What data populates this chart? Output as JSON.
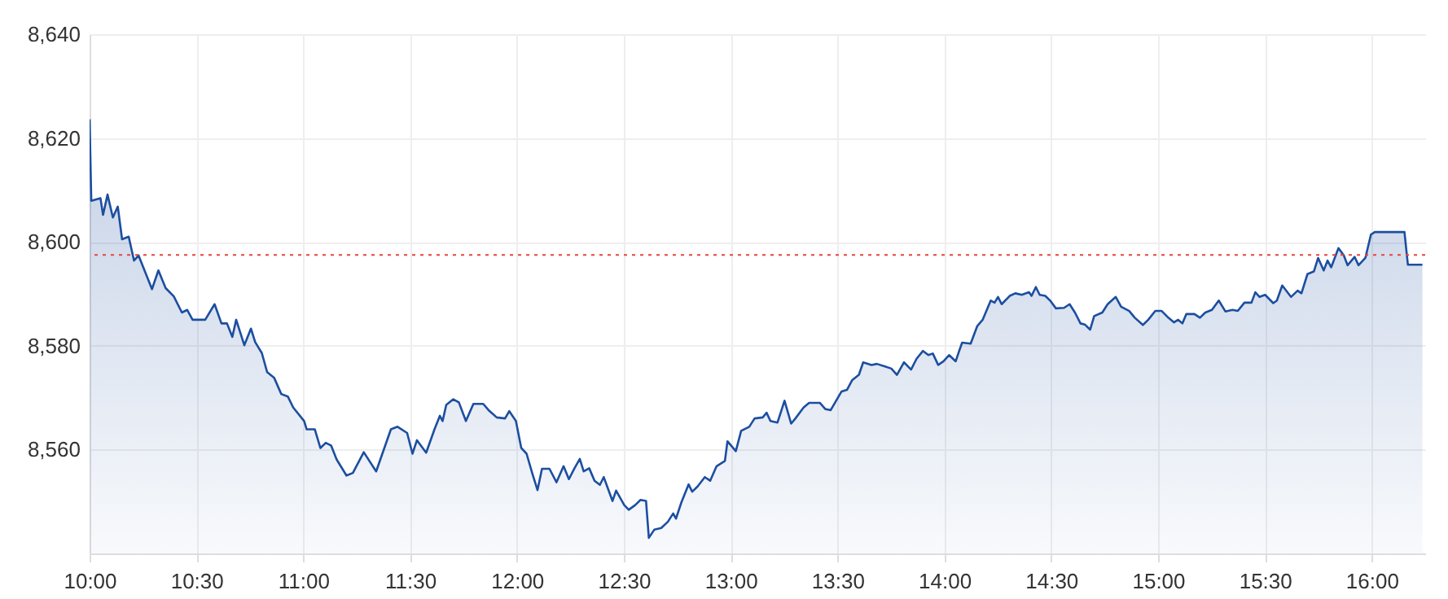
{
  "chart_data": {
    "type": "area",
    "x": [
      10.0,
      10.008,
      10.051,
      10.063,
      10.084,
      10.109,
      10.132,
      10.152,
      10.183,
      10.208,
      10.229,
      10.292,
      10.322,
      10.356,
      10.394,
      10.432,
      10.457,
      10.482,
      10.541,
      10.585,
      10.617,
      10.643,
      10.668,
      10.686,
      10.724,
      10.755,
      10.775,
      10.806,
      10.831,
      10.864,
      10.897,
      10.928,
      10.953,
      11.004,
      11.016,
      11.054,
      11.08,
      11.105,
      11.13,
      11.156,
      11.202,
      11.232,
      11.283,
      11.341,
      11.41,
      11.441,
      11.486,
      11.511,
      11.532,
      11.575,
      11.614,
      11.639,
      11.652,
      11.669,
      11.702,
      11.728,
      11.761,
      11.796,
      11.842,
      11.867,
      11.905,
      11.944,
      11.964,
      11.995,
      12.02,
      12.045,
      12.071,
      12.096,
      12.117,
      12.152,
      12.185,
      12.218,
      12.243,
      12.269,
      12.294,
      12.312,
      12.338,
      12.363,
      12.388,
      12.406,
      12.447,
      12.464,
      12.502,
      12.523,
      12.553,
      12.578,
      12.604,
      12.617,
      12.643,
      12.675,
      12.706,
      12.731,
      12.744,
      12.769,
      12.803,
      12.82,
      12.845,
      12.879,
      12.904,
      12.934,
      12.973,
      12.985,
      13.024,
      13.049,
      13.087,
      13.112,
      13.15,
      13.168,
      13.186,
      13.219,
      13.252,
      13.283,
      13.303,
      13.341,
      13.367,
      13.417,
      13.443,
      13.468,
      13.489,
      13.519,
      13.544,
      13.569,
      13.6,
      13.62,
      13.659,
      13.684,
      13.722,
      13.752,
      13.778,
      13.811,
      13.844,
      13.87,
      13.9,
      13.925,
      13.946,
      13.971,
      13.996,
      14.022,
      14.053,
      14.07,
      14.083,
      14.123,
      14.154,
      14.179,
      14.217,
      14.235,
      14.251,
      14.268,
      14.306,
      14.332,
      14.362,
      14.396,
      14.408,
      14.428,
      14.446,
      14.472,
      14.497,
      14.522,
      14.56,
      14.586,
      14.611,
      14.637,
      14.657,
      14.682,
      14.701,
      14.739,
      14.764,
      14.802,
      14.827,
      14.865,
      14.891,
      14.929,
      14.954,
      14.987,
      15.017,
      15.048,
      15.074,
      15.094,
      15.114,
      15.132,
      15.17,
      15.196,
      15.221,
      15.252,
      15.284,
      15.315,
      15.348,
      15.373,
      15.404,
      15.437,
      15.455,
      15.475,
      15.501,
      15.539,
      15.556,
      15.581,
      15.622,
      15.653,
      15.671,
      15.699,
      15.729,
      15.749,
      15.775,
      15.793,
      15.81,
      15.844,
      15.869,
      15.887,
      15.92,
      15.938,
      15.97,
      15.996,
      16.014,
      16.153,
      16.169,
      16.237
    ],
    "series": [
      {
        "color": "#1c4ea0",
        "values": [
          8623.6,
          8607.9,
          8608.4,
          8605.2,
          8609.1,
          8604.7,
          8606.8,
          8600.5,
          8601.0,
          8596.4,
          8597.4,
          8590.9,
          8594.5,
          8591.1,
          8589.5,
          8586.4,
          8586.9,
          8585.0,
          8585.0,
          8588.0,
          8584.3,
          8584.3,
          8581.7,
          8585.0,
          8580.1,
          8583.3,
          8580.7,
          8578.6,
          8574.9,
          8573.8,
          8570.7,
          8570.2,
          8568.1,
          8565.5,
          8563.9,
          8563.9,
          8560.3,
          8561.3,
          8560.8,
          8558.1,
          8555.0,
          8555.5,
          8559.5,
          8555.8,
          8563.9,
          8564.4,
          8563.2,
          8559.2,
          8561.8,
          8559.4,
          8563.9,
          8566.5,
          8565.5,
          8568.6,
          8569.7,
          8569.1,
          8565.5,
          8568.8,
          8568.8,
          8567.6,
          8566.2,
          8566.0,
          8567.4,
          8565.5,
          8560.3,
          8559.2,
          8555.5,
          8552.2,
          8556.3,
          8556.3,
          8553.7,
          8556.8,
          8554.3,
          8556.4,
          8558.2,
          8555.8,
          8556.4,
          8554.0,
          8553.2,
          8554.7,
          8550.1,
          8552.1,
          8549.3,
          8548.4,
          8549.3,
          8550.3,
          8550.1,
          8543.0,
          8544.6,
          8544.9,
          8546.1,
          8547.7,
          8546.7,
          8549.8,
          8553.3,
          8551.9,
          8552.9,
          8554.7,
          8554.0,
          8556.8,
          8557.8,
          8561.6,
          8559.7,
          8563.6,
          8564.4,
          8566.0,
          8566.2,
          8567.1,
          8565.5,
          8565.2,
          8569.4,
          8565.0,
          8566.0,
          8568.1,
          8569.0,
          8569.0,
          8567.8,
          8567.6,
          8569.1,
          8571.2,
          8571.5,
          8573.4,
          8574.4,
          8576.8,
          8576.3,
          8576.5,
          8576.0,
          8575.6,
          8574.4,
          8576.8,
          8575.4,
          8577.5,
          8579.0,
          8578.2,
          8578.5,
          8576.3,
          8577.0,
          8578.2,
          8577.0,
          8579.1,
          8580.6,
          8580.4,
          8583.8,
          8585.0,
          8588.7,
          8588.3,
          8589.4,
          8588.0,
          8589.6,
          8590.1,
          8589.8,
          8590.3,
          8589.6,
          8591.3,
          8589.8,
          8589.6,
          8588.6,
          8587.2,
          8587.3,
          8588.0,
          8586.4,
          8584.3,
          8584.1,
          8583.1,
          8585.7,
          8586.4,
          8588.0,
          8589.4,
          8587.5,
          8586.7,
          8585.4,
          8584.0,
          8585.0,
          8586.7,
          8586.7,
          8585.4,
          8584.5,
          8585.0,
          8584.3,
          8586.1,
          8586.1,
          8585.4,
          8586.4,
          8586.9,
          8588.7,
          8586.6,
          8586.9,
          8586.7,
          8588.3,
          8588.3,
          8590.3,
          8589.4,
          8589.8,
          8588.2,
          8588.7,
          8591.6,
          8589.4,
          8590.6,
          8590.1,
          8593.8,
          8594.3,
          8596.9,
          8594.5,
          8596.4,
          8595.1,
          8598.8,
          8597.4,
          8595.5,
          8597.1,
          8595.5,
          8596.9,
          8601.4,
          8601.9,
          8601.9,
          8595.6,
          8595.6
        ]
      }
    ],
    "xlim": [
      10,
      16.25
    ],
    "xticks": [
      {
        "value": 10,
        "label": "10:00"
      },
      {
        "value": 10.5,
        "label": "10:30"
      },
      {
        "value": 11,
        "label": "11:00"
      },
      {
        "value": 11.5,
        "label": "11:30"
      },
      {
        "value": 12,
        "label": "12:00"
      },
      {
        "value": 12.5,
        "label": "12:30"
      },
      {
        "value": 13,
        "label": "13:00"
      },
      {
        "value": 13.5,
        "label": "13:30"
      },
      {
        "value": 14,
        "label": "14:00"
      },
      {
        "value": 14.5,
        "label": "14:30"
      },
      {
        "value": 15,
        "label": "15:00"
      },
      {
        "value": 15.5,
        "label": "15:30"
      },
      {
        "value": 16,
        "label": "16:00"
      }
    ],
    "ylim": [
      8540,
      8640
    ],
    "yticks": [
      {
        "value": 8560,
        "label": "8,560"
      },
      {
        "value": 8580,
        "label": "8,580"
      },
      {
        "value": 8600,
        "label": "8,600"
      },
      {
        "value": 8620,
        "label": "8,620"
      },
      {
        "value": 8640,
        "label": "8,640"
      }
    ],
    "ref_lines": [
      {
        "axis": "y",
        "value": 8597.5,
        "color": "#e8453c",
        "line_style": "dotted"
      }
    ],
    "grid": true,
    "line_style": "solid"
  }
}
